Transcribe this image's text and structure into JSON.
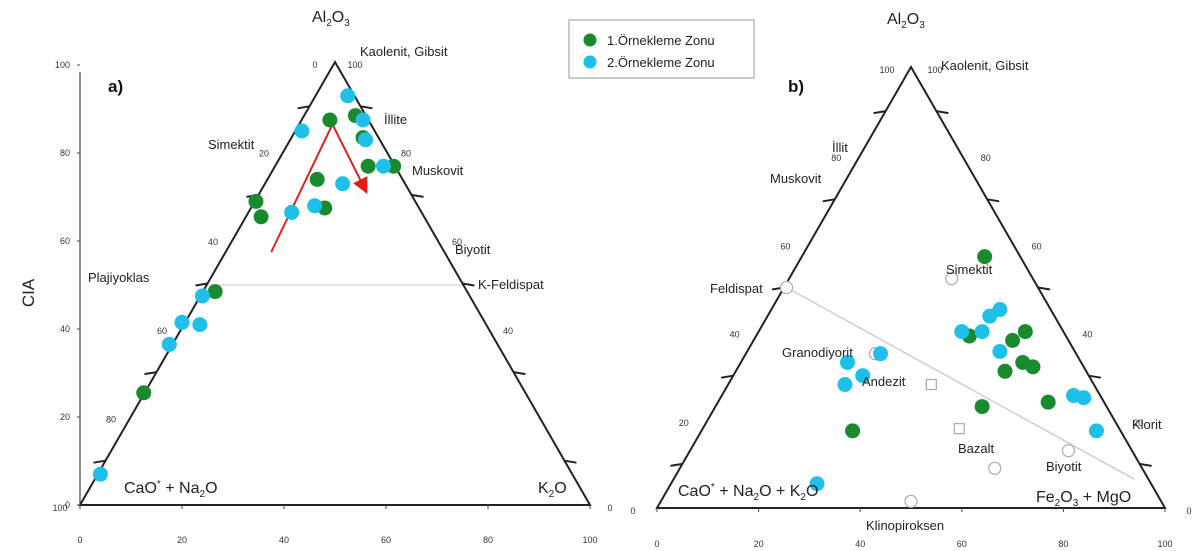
{
  "colors": {
    "zone1": "#1a8a2e",
    "zone2": "#1ec0ea",
    "arrow": "#e0201c",
    "axis": "#222222",
    "guide": "#c8c8c8"
  },
  "legend": {
    "items": [
      {
        "label": "1.Örnekleme Zonu",
        "color": "#1a8a2e"
      },
      {
        "label": "2.Örnekleme Zonu",
        "color": "#1ec0ea"
      }
    ]
  },
  "chart_data": [
    {
      "type": "scatter",
      "panel": "a)",
      "ylabel": "CIA",
      "ylim": [
        0,
        100
      ],
      "y_ticks": [
        "0",
        "20",
        "40",
        "60",
        "80",
        "100"
      ],
      "x_ticks": [
        "0",
        "20",
        "40",
        "60",
        "80",
        "100"
      ],
      "apex_top": "Al2O3",
      "corner_left": "CaO* + Na2O",
      "corner_right": "K2O",
      "left_edge_ticks": [
        "0",
        "20",
        "40",
        "60",
        "80",
        "100"
      ],
      "right_edge_ticks": [
        "100",
        "80",
        "60",
        "40",
        "0"
      ],
      "annotations": [
        "Kaolenit, Gibsit",
        "İllite",
        "Simektit",
        "Muskovit",
        "Biyotit",
        "K-Feldispat",
        "Plajiyoklas"
      ],
      "series": [
        {
          "name": "1.Örnekleme Zonu",
          "points": [
            [
              12.5,
              25.5
            ],
            [
              26.5,
              48.5
            ],
            [
              34.5,
              69.0
            ],
            [
              35.5,
              65.5
            ],
            [
              46.5,
              74.0
            ],
            [
              48.0,
              67.5
            ],
            [
              49.0,
              87.5
            ],
            [
              54.0,
              88.5
            ],
            [
              55.5,
              83.5
            ],
            [
              56.5,
              77.0
            ],
            [
              61.5,
              77.0
            ]
          ]
        },
        {
          "name": "2.Örnekleme Zonu",
          "points": [
            [
              4.0,
              7.0
            ],
            [
              17.5,
              36.5
            ],
            [
              20.0,
              41.5
            ],
            [
              23.5,
              41.0
            ],
            [
              24.0,
              47.5
            ],
            [
              41.5,
              66.5
            ],
            [
              43.5,
              85.0
            ],
            [
              46.0,
              68.0
            ],
            [
              51.5,
              73.0
            ],
            [
              52.5,
              93.0
            ],
            [
              55.5,
              87.5
            ],
            [
              56.0,
              83.0
            ],
            [
              59.5,
              77.0
            ]
          ]
        }
      ],
      "arrow_path": [
        [
          37.5,
          57.5
        ],
        [
          49.5,
          86.5
        ],
        [
          56.0,
          71.5
        ]
      ]
    },
    {
      "type": "scatter",
      "panel": "b)",
      "x_ticks": [
        "0",
        "20",
        "40",
        "60",
        "80",
        "100"
      ],
      "apex_top": "Al2O3",
      "corner_left": "CaO* + Na2O + K2O",
      "corner_right": "Fe2O3 + MgO",
      "left_edge_ticks": [
        "100",
        "80",
        "60",
        "40",
        "20",
        "0"
      ],
      "right_edge_ticks": [
        "100",
        "80",
        "60",
        "40",
        "20",
        "0"
      ],
      "annotations": [
        "Kaolenit, Gibsit",
        "İllit",
        "Muskovit",
        "Simektit",
        "Feldispat",
        "Granodiyorit",
        "Andezit",
        "Bazalt",
        "Biyotit",
        "Klorit",
        "Klinopiroksen"
      ],
      "series": [
        {
          "name": "1.Örnekleme Zonu",
          "points": [
            [
              38.5,
              17.5
            ],
            [
              64.0,
              23.0
            ],
            [
              64.5,
              57.0
            ],
            [
              61.5,
              39.0
            ],
            [
              68.5,
              31.0
            ],
            [
              70.0,
              38.0
            ],
            [
              72.0,
              33.0
            ],
            [
              72.5,
              40.0
            ],
            [
              74.0,
              32.0
            ],
            [
              77.0,
              24.0
            ]
          ]
        },
        {
          "name": "2.Örnekleme Zonu",
          "points": [
            [
              31.5,
              5.5
            ],
            [
              37.0,
              28.0
            ],
            [
              37.5,
              33.0
            ],
            [
              40.5,
              30.0
            ],
            [
              44.0,
              35.0
            ],
            [
              60.0,
              40.0
            ],
            [
              64.0,
              40.0
            ],
            [
              65.5,
              43.5
            ],
            [
              67.5,
              35.5
            ],
            [
              67.5,
              45.0
            ],
            [
              82.0,
              25.5
            ],
            [
              84.0,
              25.0
            ],
            [
              86.5,
              17.5
            ]
          ]
        }
      ],
      "reference_points": {
        "circles": [
          [
            25.5,
            50.0
          ],
          [
            58.0,
            52.0
          ],
          [
            43.0,
            35.0
          ],
          [
            81.0,
            13.0
          ],
          [
            66.5,
            9.0
          ],
          [
            50.0,
            1.5
          ]
        ],
        "squares": [
          [
            54.0,
            28.0
          ],
          [
            59.5,
            18.0
          ]
        ]
      },
      "trend_line": [
        [
          25.5,
          50.0
        ],
        [
          94.0,
          6.5
        ]
      ]
    }
  ]
}
